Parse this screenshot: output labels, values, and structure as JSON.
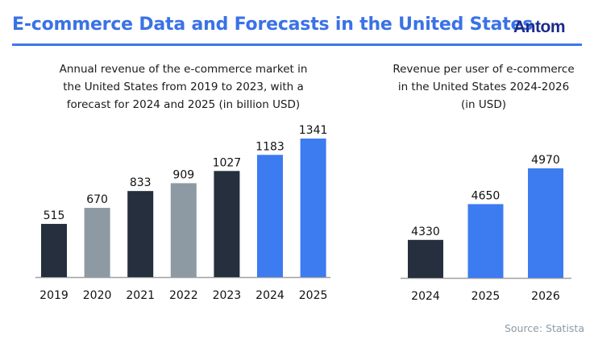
{
  "header": {
    "title": "E-commerce Data and Forecasts in the United States",
    "logo": "Antom",
    "accent_color": "#3a72e6"
  },
  "colors": {
    "dark": "#252f3e",
    "gray": "#8d9aa3",
    "blue": "#3d7bf1",
    "axis": "#a0a0a0"
  },
  "chart_data": [
    {
      "type": "bar",
      "title": "Annual revenue of the e-commerce market in the United States from 2019 to 2023, with a forecast for 2024 and 2025 (in billion USD)",
      "title_lines": [
        "Annual revenue of the e-commerce market in",
        "the United States from 2019 to 2023, with a",
        "forecast for 2024 and 2025 (in billion USD)"
      ],
      "categories": [
        "2019",
        "2020",
        "2021",
        "2022",
        "2023",
        "2024",
        "2025"
      ],
      "values": [
        515,
        670,
        833,
        909,
        1027,
        1183,
        1341
      ],
      "value_labels": [
        "515",
        "670",
        "833",
        "909",
        "1027",
        "1183",
        "1341"
      ],
      "bar_colors": [
        "dark",
        "gray",
        "dark",
        "gray",
        "dark",
        "blue",
        "blue"
      ],
      "xlabel": "",
      "ylabel": "",
      "ylim": [
        0,
        1341
      ],
      "grid": false,
      "y_axis_visible": false
    },
    {
      "type": "bar",
      "title": "Revenue per user of e-commerce in the United States 2024-2026 (in USD)",
      "title_lines": [
        "Revenue per user of e-commerce",
        "in the United States 2024-2026",
        "(in USD)"
      ],
      "categories": [
        "2024",
        "2025",
        "2026"
      ],
      "values": [
        4330,
        4650,
        4970
      ],
      "value_labels": [
        "4330",
        "4650",
        "4970"
      ],
      "bar_colors": [
        "dark",
        "blue",
        "blue"
      ],
      "xlabel": "",
      "ylabel": "",
      "ylim": [
        3990,
        4970
      ],
      "grid": false,
      "y_axis_visible": false
    }
  ],
  "footer": {
    "source": "Source: Statista"
  }
}
